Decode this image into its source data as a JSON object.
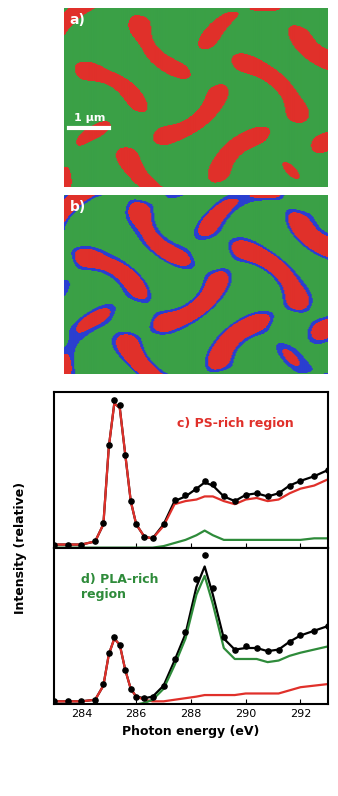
{
  "images": [
    {
      "label": "a)",
      "scale_bar": "1 μm",
      "colors": [
        "#3aa046",
        "#e0302a"
      ]
    },
    {
      "label": "b)",
      "colors": [
        "#3aa046",
        "#e0302a",
        "#2a3fd0"
      ]
    }
  ],
  "chart_data": [
    {
      "type": "line",
      "annotation": "c) PS-rich region",
      "ylabel": "Intensity (relative)",
      "x": [
        283.0,
        283.5,
        284.0,
        284.5,
        284.8,
        285.0,
        285.2,
        285.4,
        285.6,
        285.8,
        286.0,
        286.3,
        286.6,
        287.0,
        287.4,
        287.8,
        288.2,
        288.5,
        288.8,
        289.2,
        289.6,
        290.0,
        290.4,
        290.8,
        291.2,
        291.6,
        292.0,
        292.5,
        293.0
      ],
      "xlim": [
        283,
        293
      ],
      "xticks": [
        284,
        286,
        288,
        290,
        292
      ],
      "ylim": [
        0,
        1
      ],
      "yticks": [],
      "tick_labels": false,
      "series": [
        {
          "type": "scatter",
          "marker": "circle",
          "color": "#000000",
          "values": [
            0.02,
            0.02,
            0.02,
            0.04,
            0.16,
            0.66,
            0.95,
            0.92,
            0.6,
            0.3,
            0.15,
            0.07,
            0.06,
            0.15,
            0.31,
            0.34,
            0.38,
            0.43,
            0.41,
            0.33,
            0.3,
            0.34,
            0.35,
            0.33,
            0.35,
            0.4,
            0.43,
            0.46,
            0.5
          ]
        },
        {
          "type": "line",
          "color": "#000000",
          "values": [
            0.02,
            0.02,
            0.02,
            0.04,
            0.15,
            0.65,
            0.93,
            0.9,
            0.6,
            0.3,
            0.15,
            0.07,
            0.06,
            0.15,
            0.3,
            0.33,
            0.38,
            0.42,
            0.4,
            0.33,
            0.3,
            0.34,
            0.35,
            0.33,
            0.35,
            0.4,
            0.43,
            0.46,
            0.5
          ]
        },
        {
          "type": "line",
          "color": "#e0302a",
          "values": [
            0.02,
            0.02,
            0.02,
            0.04,
            0.15,
            0.65,
            0.93,
            0.9,
            0.6,
            0.3,
            0.15,
            0.07,
            0.06,
            0.14,
            0.28,
            0.3,
            0.31,
            0.33,
            0.33,
            0.3,
            0.28,
            0.31,
            0.32,
            0.3,
            0.31,
            0.35,
            0.38,
            0.4,
            0.44
          ]
        },
        {
          "type": "line",
          "color": "#2e8b3a",
          "values": [
            0.0,
            0.0,
            0.0,
            0.0,
            0.0,
            0.0,
            0.0,
            0.0,
            0.0,
            0.0,
            0.0,
            0.0,
            0.0,
            0.01,
            0.03,
            0.05,
            0.08,
            0.11,
            0.08,
            0.05,
            0.05,
            0.05,
            0.05,
            0.05,
            0.05,
            0.05,
            0.05,
            0.06,
            0.06
          ]
        }
      ]
    },
    {
      "type": "line",
      "annotation": "d) PLA-rich\nregion",
      "xlabel": "Photon energy (eV)",
      "x": [
        283.0,
        283.5,
        284.0,
        284.5,
        284.8,
        285.0,
        285.2,
        285.4,
        285.6,
        285.8,
        286.0,
        286.3,
        286.6,
        287.0,
        287.4,
        287.8,
        288.2,
        288.5,
        288.8,
        289.2,
        289.6,
        290.0,
        290.4,
        290.8,
        291.2,
        291.6,
        292.0,
        292.5,
        293.0
      ],
      "xlim": [
        283,
        293
      ],
      "xticks": [
        284,
        286,
        288,
        290,
        292
      ],
      "ylim": [
        0,
        1
      ],
      "yticks": [],
      "tick_labels": "x",
      "series": [
        {
          "type": "scatter",
          "marker": "circle",
          "color": "#000000",
          "values": [
            0.02,
            0.02,
            0.02,
            0.03,
            0.13,
            0.33,
            0.43,
            0.38,
            0.22,
            0.1,
            0.05,
            0.04,
            0.05,
            0.12,
            0.29,
            0.46,
            0.8,
            0.95,
            0.74,
            0.43,
            0.35,
            0.37,
            0.36,
            0.34,
            0.35,
            0.4,
            0.44,
            0.47,
            0.5
          ]
        },
        {
          "type": "line",
          "color": "#000000",
          "values": [
            0.02,
            0.02,
            0.02,
            0.03,
            0.12,
            0.32,
            0.42,
            0.38,
            0.22,
            0.1,
            0.05,
            0.04,
            0.05,
            0.12,
            0.28,
            0.45,
            0.75,
            0.88,
            0.7,
            0.42,
            0.35,
            0.36,
            0.36,
            0.34,
            0.35,
            0.4,
            0.44,
            0.47,
            0.5
          ]
        },
        {
          "type": "line",
          "color": "#e0302a",
          "values": [
            0.02,
            0.02,
            0.02,
            0.03,
            0.12,
            0.32,
            0.42,
            0.38,
            0.22,
            0.1,
            0.05,
            0.03,
            0.02,
            0.02,
            0.03,
            0.04,
            0.05,
            0.06,
            0.06,
            0.06,
            0.06,
            0.07,
            0.07,
            0.07,
            0.07,
            0.09,
            0.11,
            0.12,
            0.13
          ]
        },
        {
          "type": "line",
          "color": "#2e8b3a",
          "values": [
            0.0,
            0.0,
            0.0,
            0.0,
            0.0,
            0.0,
            0.0,
            0.0,
            0.0,
            0.0,
            0.0,
            0.01,
            0.03,
            0.1,
            0.25,
            0.42,
            0.7,
            0.82,
            0.64,
            0.36,
            0.29,
            0.29,
            0.29,
            0.27,
            0.28,
            0.31,
            0.33,
            0.35,
            0.37
          ]
        }
      ]
    }
  ]
}
